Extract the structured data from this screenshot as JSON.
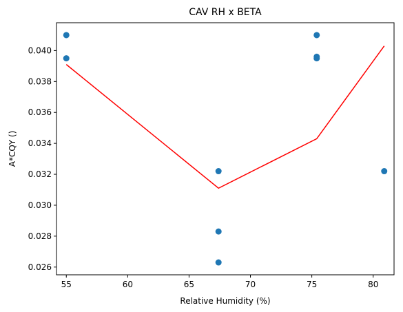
{
  "chart_data": {
    "type": "scatter",
    "title": "CAV RH x BETA",
    "xlabel": "Relative Humidity (%)",
    "ylabel": "A*CQY ()",
    "xlim": [
      54.2,
      81.7
    ],
    "ylim": [
      0.0255,
      0.0418
    ],
    "xticks": [
      55,
      60,
      65,
      70,
      75,
      80
    ],
    "yticks": [
      0.026,
      0.028,
      0.03,
      0.032,
      0.034,
      0.036,
      0.038,
      0.04
    ],
    "xtick_labels": [
      "55",
      "60",
      "65",
      "70",
      "75",
      "80"
    ],
    "ytick_labels": [
      "0.026",
      "0.028",
      "0.030",
      "0.032",
      "0.034",
      "0.036",
      "0.038",
      "0.040"
    ],
    "grid": false,
    "series": [
      {
        "kind": "scatter",
        "color": "#1f77b4",
        "points": [
          {
            "x": 55.0,
            "y": 0.041
          },
          {
            "x": 55.0,
            "y": 0.0395
          },
          {
            "x": 67.4,
            "y": 0.0322
          },
          {
            "x": 67.4,
            "y": 0.0283
          },
          {
            "x": 67.4,
            "y": 0.0263
          },
          {
            "x": 75.4,
            "y": 0.041
          },
          {
            "x": 75.4,
            "y": 0.0396
          },
          {
            "x": 75.4,
            "y": 0.0395
          },
          {
            "x": 80.9,
            "y": 0.0322
          }
        ]
      },
      {
        "kind": "line",
        "color": "#ff0000",
        "points": [
          {
            "x": 55.0,
            "y": 0.0391
          },
          {
            "x": 67.4,
            "y": 0.0311
          },
          {
            "x": 75.4,
            "y": 0.0343
          },
          {
            "x": 80.9,
            "y": 0.0403
          }
        ]
      }
    ]
  }
}
